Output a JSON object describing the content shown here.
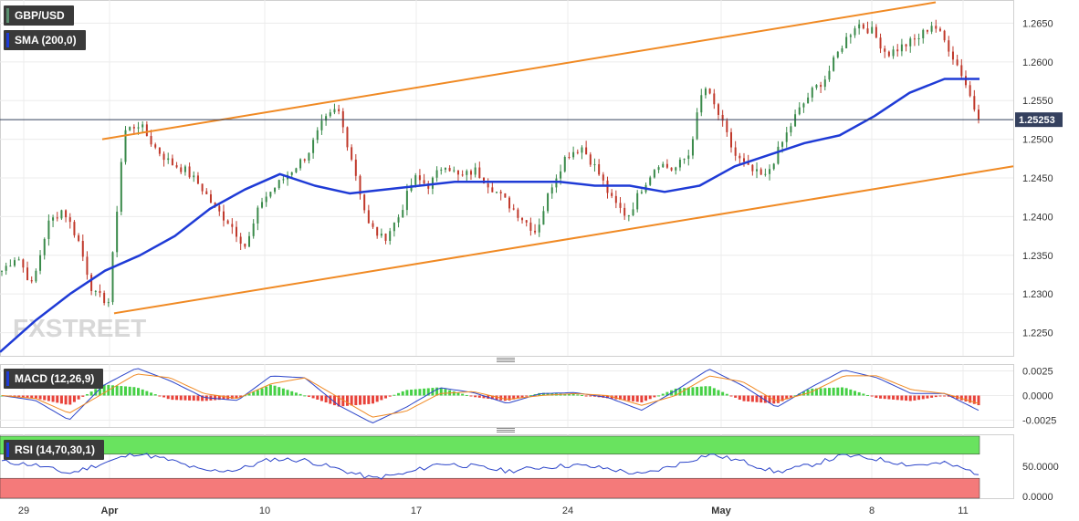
{
  "instrument_label": "GBP/USD",
  "sma_label": "SMA (200,0)",
  "macd_label": "MACD (12,26,9)",
  "rsi_label": "RSI (14,70,30,1)",
  "watermark": "FXSTREET",
  "current_price": "1.25253",
  "colors": {
    "background": "#ffffff",
    "grid": "#ececec",
    "candle_up": "#3a8a4a",
    "candle_down": "#c0392b",
    "sma": "#1f3bd6",
    "channel": "#f08a24",
    "price_line": "#34405e",
    "macd_line": "#2b44c9",
    "signal_line": "#f08a24",
    "hist_pos": "#46d046",
    "hist_neg": "#e8423a",
    "rsi_line": "#2b44c9",
    "rsi_overbought": "#69e35f",
    "rsi_oversold": "#f47a7a"
  },
  "chart_data": [
    {
      "type": "line",
      "description_source": "main price pane",
      "series": [
        {
          "name": "GBP/USD",
          "kind": "candlestick",
          "values": [
            1.233,
            1.235,
            1.231,
            1.239,
            1.241,
            1.237,
            1.23,
            1.229,
            1.251,
            1.252,
            1.249,
            1.247,
            1.246,
            1.244,
            1.241,
            1.239,
            1.236,
            1.242,
            1.244,
            1.246,
            1.248,
            1.252,
            1.254,
            1.247,
            1.239,
            1.237,
            1.24,
            1.245,
            1.244,
            1.247,
            1.245,
            1.246,
            1.244,
            1.242,
            1.24,
            1.238,
            1.244,
            1.248,
            1.249,
            1.246,
            1.242,
            1.24,
            1.244,
            1.247,
            1.246,
            1.248,
            1.257,
            1.253,
            1.248,
            1.246,
            1.245,
            1.249,
            1.253,
            1.256,
            1.258,
            1.262,
            1.265,
            1.264,
            1.261,
            1.262,
            1.263,
            1.265,
            1.262,
            1.258,
            1.2525
          ]
        },
        {
          "name": "SMA (200,0)",
          "kind": "line",
          "values": [
            1.2225,
            1.2265,
            1.23,
            1.233,
            1.235,
            1.2375,
            1.241,
            1.2435,
            1.2455,
            1.244,
            1.243,
            1.2435,
            1.244,
            1.2445,
            1.2445,
            1.2445,
            1.2445,
            1.244,
            1.244,
            1.2432,
            1.244,
            1.2465,
            1.248,
            1.2495,
            1.2505,
            1.253,
            1.256,
            1.2578,
            1.2578
          ]
        }
      ],
      "channel_upper": [
        1.25,
        1.2677
      ],
      "channel_lower": [
        1.2275,
        1.2465
      ],
      "current_price": 1.25253,
      "ylim": [
        1.222,
        1.268
      ],
      "y_ticks": [
        "1.2650",
        "1.2600",
        "1.2550",
        "1.2500",
        "1.2450",
        "1.2400",
        "1.2350",
        "1.2300",
        "1.2250"
      ],
      "x_ticks": [
        "29",
        "Apr",
        "10",
        "17",
        "24",
        "May",
        "8",
        "11"
      ]
    },
    {
      "type": "line",
      "description_source": "MACD pane",
      "series": [
        {
          "name": "MACD",
          "values": [
            0.0,
            -0.0005,
            -0.0025,
            0.001,
            0.0028,
            0.0015,
            -0.0002,
            -0.0005,
            0.002,
            0.0018,
            -0.001,
            -0.0028,
            -0.0012,
            0.0008,
            0.0003,
            -0.0008,
            0.0002,
            0.0003,
            -0.0002,
            -0.0015,
            0.0005,
            0.0027,
            0.001,
            -0.0012,
            0.0008,
            0.0026,
            0.0018,
            0.0002,
            0.0002,
            -0.0015
          ]
        },
        {
          "name": "Signal",
          "values": [
            0.0,
            -0.0003,
            -0.0018,
            0.0002,
            0.0022,
            0.0018,
            0.0002,
            -0.0003,
            0.0012,
            0.0018,
            -0.0002,
            -0.0022,
            -0.0016,
            0.0002,
            0.0004,
            -0.0004,
            0.0,
            0.0002,
            0.0,
            -0.001,
            0.0,
            0.002,
            0.0014,
            -0.0006,
            0.0003,
            0.002,
            0.002,
            0.0006,
            0.0002,
            -0.0008
          ]
        }
      ],
      "y_ticks": [
        "0.0025",
        "0.0000",
        "-0.0025"
      ]
    },
    {
      "type": "line",
      "description_source": "RSI pane",
      "series": [
        {
          "name": "RSI",
          "values": [
            58,
            52,
            38,
            55,
            72,
            60,
            42,
            44,
            62,
            60,
            45,
            30,
            38,
            55,
            50,
            42,
            48,
            52,
            46,
            36,
            52,
            70,
            58,
            40,
            52,
            68,
            62,
            52,
            55,
            38
          ]
        }
      ],
      "overbought": 70,
      "oversold": 30,
      "y_ticks": [
        "50.0000",
        "0.0000"
      ]
    }
  ]
}
